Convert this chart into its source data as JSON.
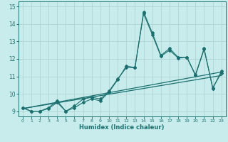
{
  "xlabel": "Humidex (Indice chaleur)",
  "ylabel": "",
  "background_color": "#c8ecec",
  "grid_color": "#b0d4d4",
  "line_color": "#1a7070",
  "xlim": [
    -0.5,
    23.5
  ],
  "ylim": [
    8.7,
    15.3
  ],
  "xticks": [
    0,
    1,
    2,
    3,
    4,
    5,
    6,
    7,
    8,
    9,
    10,
    11,
    12,
    13,
    14,
    15,
    16,
    17,
    18,
    19,
    20,
    21,
    22,
    23
  ],
  "yticks": [
    9,
    10,
    11,
    12,
    13,
    14,
    15
  ],
  "x": [
    0,
    1,
    2,
    3,
    4,
    5,
    6,
    7,
    8,
    9,
    10,
    11,
    12,
    13,
    14,
    15,
    16,
    17,
    18,
    19,
    20,
    21,
    22,
    23
  ],
  "line1": [
    9.2,
    9.0,
    9.0,
    9.2,
    9.6,
    9.0,
    9.2,
    9.5,
    9.7,
    9.6,
    10.1,
    10.8,
    11.6,
    11.5,
    14.7,
    13.5,
    12.2,
    12.6,
    12.1,
    12.1,
    11.1,
    12.6,
    10.3,
    11.3
  ],
  "line2": [
    9.2,
    9.0,
    9.0,
    9.15,
    9.5,
    9.0,
    9.3,
    9.7,
    9.8,
    9.7,
    10.15,
    10.85,
    11.5,
    11.5,
    14.6,
    13.4,
    12.15,
    12.5,
    12.05,
    12.1,
    11.05,
    12.55,
    10.35,
    11.2
  ],
  "line3_x": [
    0,
    23
  ],
  "line3_y": [
    9.15,
    11.25
  ],
  "line4_x": [
    0,
    23
  ],
  "line4_y": [
    9.15,
    11.05
  ]
}
